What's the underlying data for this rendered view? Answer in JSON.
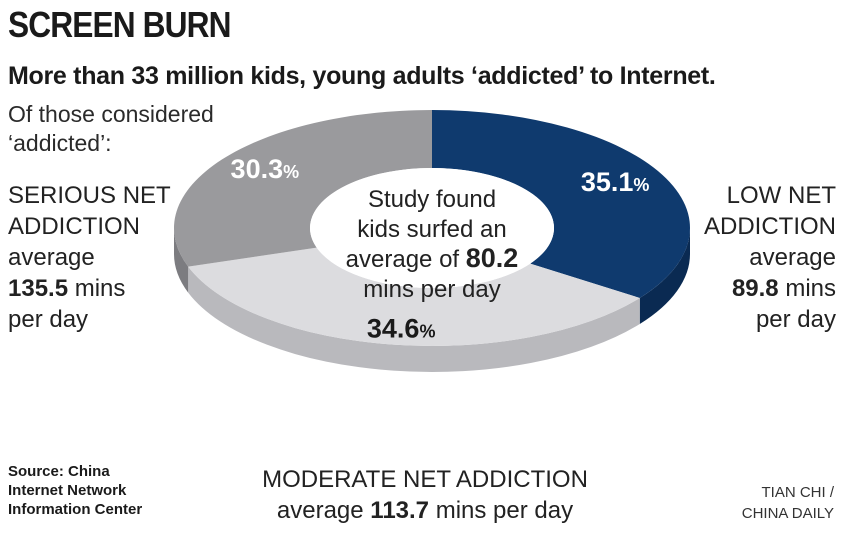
{
  "header": {
    "title": "SCREEN BURN",
    "subtitle": "More than 33 million kids, young adults ‘addicted’ to Internet.",
    "intro_line1": "Of those considered",
    "intro_line2": "‘addicted’:"
  },
  "center_text": {
    "line1": "Study found",
    "line2": "kids surfed an",
    "line3_prefix": "average of",
    "line3_value": "80.2",
    "line4": "mins per day"
  },
  "labels": {
    "serious": {
      "line1": "SERIOUS NET",
      "line2": "ADDICTION",
      "line3": "average",
      "value": "135.5",
      "unit": "mins",
      "line5": "per day"
    },
    "low": {
      "line1": "LOW NET",
      "line2": "ADDICTION",
      "line3": "average",
      "value": "89.8",
      "unit": "mins",
      "line5": "per day"
    },
    "moderate": {
      "line1": "MODERATE NET ADDICTION",
      "prefix": "average",
      "value": "113.7",
      "suffix": "mins per day"
    }
  },
  "footer": {
    "source_line1": "Source: China",
    "source_line2": "Internet Network",
    "source_line3": "Information Center",
    "credit_line1": "TIAN CHI /",
    "credit_line2": "CHINA DAILY"
  },
  "chart_data": {
    "type": "pie",
    "donut": true,
    "title": "SCREEN BURN",
    "unit": "%",
    "slices": [
      {
        "name": "LOW NET ADDICTION",
        "value": 35.1,
        "label": "35.1",
        "color": "#0f3a6e",
        "side": "#0a2a52",
        "text_color": "#ffffff"
      },
      {
        "name": "MODERATE NET ADDICTION",
        "value": 34.6,
        "label": "34.6",
        "color": "#dcdcdf",
        "side": "#b9b9bd",
        "text_color": "#1a1a1a"
      },
      {
        "name": "SERIOUS NET ADDICTION",
        "value": 30.3,
        "label": "30.3",
        "color": "#9a9a9d",
        "side": "#7c7c80",
        "text_color": "#ffffff"
      }
    ],
    "average_minutes": {
      "SERIOUS NET ADDICTION": 135.5,
      "LOW NET ADDICTION": 89.8,
      "MODERATE NET ADDICTION": 113.7,
      "overall": 80.2
    }
  }
}
